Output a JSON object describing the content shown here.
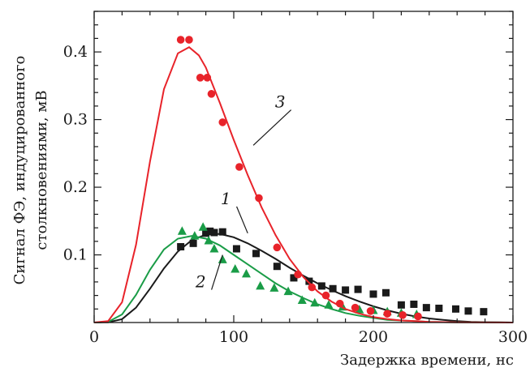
{
  "chart_data": {
    "type": "scatter",
    "xlabel": "Задержка времени, нс",
    "ylabel_line1": "Сигнал ФЭ, индуцированного",
    "ylabel_line2": "столкновениями, мВ",
    "xlim": [
      0,
      300
    ],
    "ylim": [
      0,
      0.46
    ],
    "x_ticks": [
      0,
      100,
      200,
      300
    ],
    "y_ticks": [
      0.1,
      0.2,
      0.3,
      0.4
    ],
    "y_tick_labels": [
      "0.1",
      "0.2",
      "0.3",
      "0.4"
    ],
    "grid": false,
    "series": [
      {
        "name": "1",
        "color": "#1a1a1a",
        "marker": "square",
        "points": [
          [
            62,
            0.112
          ],
          [
            71,
            0.117
          ],
          [
            80,
            0.132
          ],
          [
            83,
            0.135
          ],
          [
            86,
            0.133
          ],
          [
            92,
            0.134
          ],
          [
            102,
            0.109
          ],
          [
            116,
            0.102
          ],
          [
            131,
            0.083
          ],
          [
            143,
            0.066
          ],
          [
            154,
            0.061
          ],
          [
            163,
            0.054
          ],
          [
            171,
            0.05
          ],
          [
            180,
            0.048
          ],
          [
            189,
            0.049
          ],
          [
            200,
            0.042
          ],
          [
            209,
            0.044
          ],
          [
            220,
            0.026
          ],
          [
            229,
            0.027
          ],
          [
            238,
            0.022
          ],
          [
            247,
            0.021
          ],
          [
            259,
            0.02
          ],
          [
            268,
            0.017
          ],
          [
            279,
            0.016
          ]
        ],
        "fit": [
          [
            0,
            0
          ],
          [
            10,
            0.0003
          ],
          [
            20,
            0.005
          ],
          [
            30,
            0.022
          ],
          [
            40,
            0.05
          ],
          [
            50,
            0.08
          ],
          [
            60,
            0.105
          ],
          [
            70,
            0.122
          ],
          [
            80,
            0.13
          ],
          [
            90,
            0.131
          ],
          [
            100,
            0.126
          ],
          [
            110,
            0.117
          ],
          [
            120,
            0.106
          ],
          [
            130,
            0.094
          ],
          [
            140,
            0.081
          ],
          [
            150,
            0.069
          ],
          [
            160,
            0.058
          ],
          [
            170,
            0.048
          ],
          [
            180,
            0.039
          ],
          [
            190,
            0.031
          ],
          [
            200,
            0.024
          ],
          [
            210,
            0.018
          ],
          [
            220,
            0.013
          ],
          [
            230,
            0.009
          ],
          [
            240,
            0.006
          ],
          [
            250,
            0.004
          ],
          [
            260,
            0.002
          ],
          [
            270,
            0.001
          ],
          [
            280,
            0.0005
          ],
          [
            290,
            0.0002
          ],
          [
            300,
            0
          ]
        ]
      },
      {
        "name": "2",
        "color": "#1a9c47",
        "marker": "triangle",
        "points": [
          [
            63,
            0.135
          ],
          [
            72,
            0.128
          ],
          [
            78,
            0.141
          ],
          [
            82,
            0.121
          ],
          [
            86,
            0.109
          ],
          [
            92,
            0.093
          ],
          [
            101,
            0.079
          ],
          [
            109,
            0.072
          ],
          [
            119,
            0.054
          ],
          [
            129,
            0.051
          ],
          [
            139,
            0.046
          ],
          [
            149,
            0.033
          ],
          [
            158,
            0.029
          ],
          [
            168,
            0.026
          ],
          [
            178,
            0.023
          ],
          [
            190,
            0.019
          ],
          [
            200,
            0.018
          ],
          [
            210,
            0.016
          ],
          [
            220,
            0.014
          ],
          [
            231,
            0.012
          ]
        ],
        "fit": [
          [
            0,
            0
          ],
          [
            10,
            0.001
          ],
          [
            20,
            0.012
          ],
          [
            30,
            0.041
          ],
          [
            40,
            0.078
          ],
          [
            50,
            0.108
          ],
          [
            60,
            0.124
          ],
          [
            70,
            0.128
          ],
          [
            80,
            0.124
          ],
          [
            90,
            0.114
          ],
          [
            100,
            0.1
          ],
          [
            110,
            0.086
          ],
          [
            120,
            0.072
          ],
          [
            130,
            0.058
          ],
          [
            140,
            0.046
          ],
          [
            150,
            0.036
          ],
          [
            160,
            0.027
          ],
          [
            170,
            0.02
          ],
          [
            180,
            0.014
          ],
          [
            190,
            0.01
          ],
          [
            200,
            0.007
          ],
          [
            210,
            0.004
          ],
          [
            220,
            0.003
          ],
          [
            230,
            0.002
          ],
          [
            240,
            0.001
          ],
          [
            260,
            0.0003
          ],
          [
            280,
            0.0001
          ],
          [
            300,
            0
          ]
        ]
      },
      {
        "name": "3",
        "color": "#e8232a",
        "marker": "circle",
        "points": [
          [
            62,
            0.418
          ],
          [
            68,
            0.418
          ],
          [
            76,
            0.362
          ],
          [
            81,
            0.362
          ],
          [
            84,
            0.338
          ],
          [
            92,
            0.296
          ],
          [
            104,
            0.23
          ],
          [
            118,
            0.184
          ],
          [
            131,
            0.111
          ],
          [
            146,
            0.071
          ],
          [
            156,
            0.052
          ],
          [
            166,
            0.04
          ],
          [
            176,
            0.028
          ],
          [
            187,
            0.022
          ],
          [
            198,
            0.017
          ],
          [
            210,
            0.013
          ],
          [
            221,
            0.011
          ],
          [
            232,
            0.009
          ]
        ],
        "fit": [
          [
            0,
            0
          ],
          [
            10,
            0.002
          ],
          [
            20,
            0.03
          ],
          [
            30,
            0.115
          ],
          [
            40,
            0.238
          ],
          [
            50,
            0.345
          ],
          [
            60,
            0.398
          ],
          [
            68,
            0.407
          ],
          [
            75,
            0.395
          ],
          [
            80,
            0.377
          ],
          [
            90,
            0.325
          ],
          [
            100,
            0.27
          ],
          [
            110,
            0.218
          ],
          [
            120,
            0.17
          ],
          [
            130,
            0.129
          ],
          [
            140,
            0.094
          ],
          [
            150,
            0.067
          ],
          [
            160,
            0.046
          ],
          [
            170,
            0.031
          ],
          [
            180,
            0.02
          ],
          [
            190,
            0.013
          ],
          [
            200,
            0.008
          ],
          [
            210,
            0.005
          ],
          [
            220,
            0.003
          ],
          [
            230,
            0.002
          ],
          [
            240,
            0.001
          ],
          [
            260,
            0.0003
          ],
          [
            280,
            0.0001
          ],
          [
            300,
            0
          ]
        ]
      }
    ],
    "annotations": [
      {
        "text": "1",
        "at": [
          98,
          0.175
        ],
        "leader_to": [
          110,
          0.132
        ],
        "color": "#1a1a1a"
      },
      {
        "text": "2",
        "at": [
          80,
          0.052
        ],
        "leader_to": [
          92,
          0.1
        ],
        "color": "#1a1a1a"
      },
      {
        "text": "3",
        "at": [
          137,
          0.318
        ],
        "leader_to": [
          114,
          0.262
        ],
        "color": "#1a1a1a"
      }
    ]
  }
}
